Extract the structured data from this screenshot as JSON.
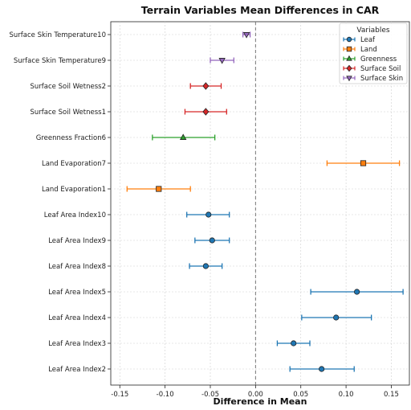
{
  "chart_data": {
    "type": "errorbar",
    "title": "Terrain Variables Mean Differences in CAR",
    "xlabel": "Difference in Mean",
    "ylabel": "",
    "xlim": [
      -0.16,
      0.17
    ],
    "xticks": [
      "-0.15",
      "-0.10",
      "-0.05",
      "0.00",
      "0.05",
      "0.10",
      "0.15"
    ],
    "xtick_values": [
      -0.15,
      -0.1,
      -0.05,
      0.0,
      0.05,
      0.1,
      0.15
    ],
    "grid": true,
    "reference_line": 0,
    "legend": {
      "title": "Variables",
      "placement": "top-right",
      "entries": [
        {
          "name": "Leaf",
          "color": "#1f77b4",
          "marker": "circle"
        },
        {
          "name": "Land",
          "color": "#ff7f0e",
          "marker": "square"
        },
        {
          "name": "Greenness",
          "color": "#2ca02c",
          "marker": "triangle-up"
        },
        {
          "name": "Surface Soil",
          "color": "#d62728",
          "marker": "diamond"
        },
        {
          "name": "Surface Skin",
          "color": "#9467bd",
          "marker": "triangle-down"
        }
      ]
    },
    "categories": [
      "Surface Skin Temperature10",
      "Surface Skin Temperature9",
      "Surface Soil Wetness2",
      "Surface Soil Wetness1",
      "Greenness Fraction6",
      "Land Evaporation7",
      "Land Evaporation1",
      "Leaf Area Index10",
      "Leaf Area Index9",
      "Leaf Area Index8",
      "Leaf Area Index5",
      "Leaf Area Index4",
      "Leaf Area Index3",
      "Leaf Area Index2"
    ],
    "points": [
      {
        "label": "Surface Skin Temperature10",
        "group": "Surface Skin",
        "mean": -0.01,
        "low": -0.014,
        "high": -0.006
      },
      {
        "label": "Surface Skin Temperature9",
        "group": "Surface Skin",
        "mean": -0.037,
        "low": -0.05,
        "high": -0.024
      },
      {
        "label": "Surface Soil Wetness2",
        "group": "Surface Soil",
        "mean": -0.055,
        "low": -0.072,
        "high": -0.038
      },
      {
        "label": "Surface Soil Wetness1",
        "group": "Surface Soil",
        "mean": -0.055,
        "low": -0.078,
        "high": -0.032
      },
      {
        "label": "Greenness Fraction6",
        "group": "Greenness",
        "mean": -0.08,
        "low": -0.114,
        "high": -0.045
      },
      {
        "label": "Land Evaporation7",
        "group": "Land",
        "mean": 0.119,
        "low": 0.079,
        "high": 0.159
      },
      {
        "label": "Land Evaporation1",
        "group": "Land",
        "mean": -0.107,
        "low": -0.142,
        "high": -0.072
      },
      {
        "label": "Leaf Area Index10",
        "group": "Leaf",
        "mean": -0.052,
        "low": -0.076,
        "high": -0.029
      },
      {
        "label": "Leaf Area Index9",
        "group": "Leaf",
        "mean": -0.048,
        "low": -0.067,
        "high": -0.029
      },
      {
        "label": "Leaf Area Index8",
        "group": "Leaf",
        "mean": -0.055,
        "low": -0.073,
        "high": -0.037
      },
      {
        "label": "Leaf Area Index5",
        "group": "Leaf",
        "mean": 0.112,
        "low": 0.061,
        "high": 0.163
      },
      {
        "label": "Leaf Area Index4",
        "group": "Leaf",
        "mean": 0.089,
        "low": 0.051,
        "high": 0.128
      },
      {
        "label": "Leaf Area Index3",
        "group": "Leaf",
        "mean": 0.042,
        "low": 0.024,
        "high": 0.06
      },
      {
        "label": "Leaf Area Index2",
        "group": "Leaf",
        "mean": 0.073,
        "low": 0.038,
        "high": 0.109
      }
    ]
  }
}
